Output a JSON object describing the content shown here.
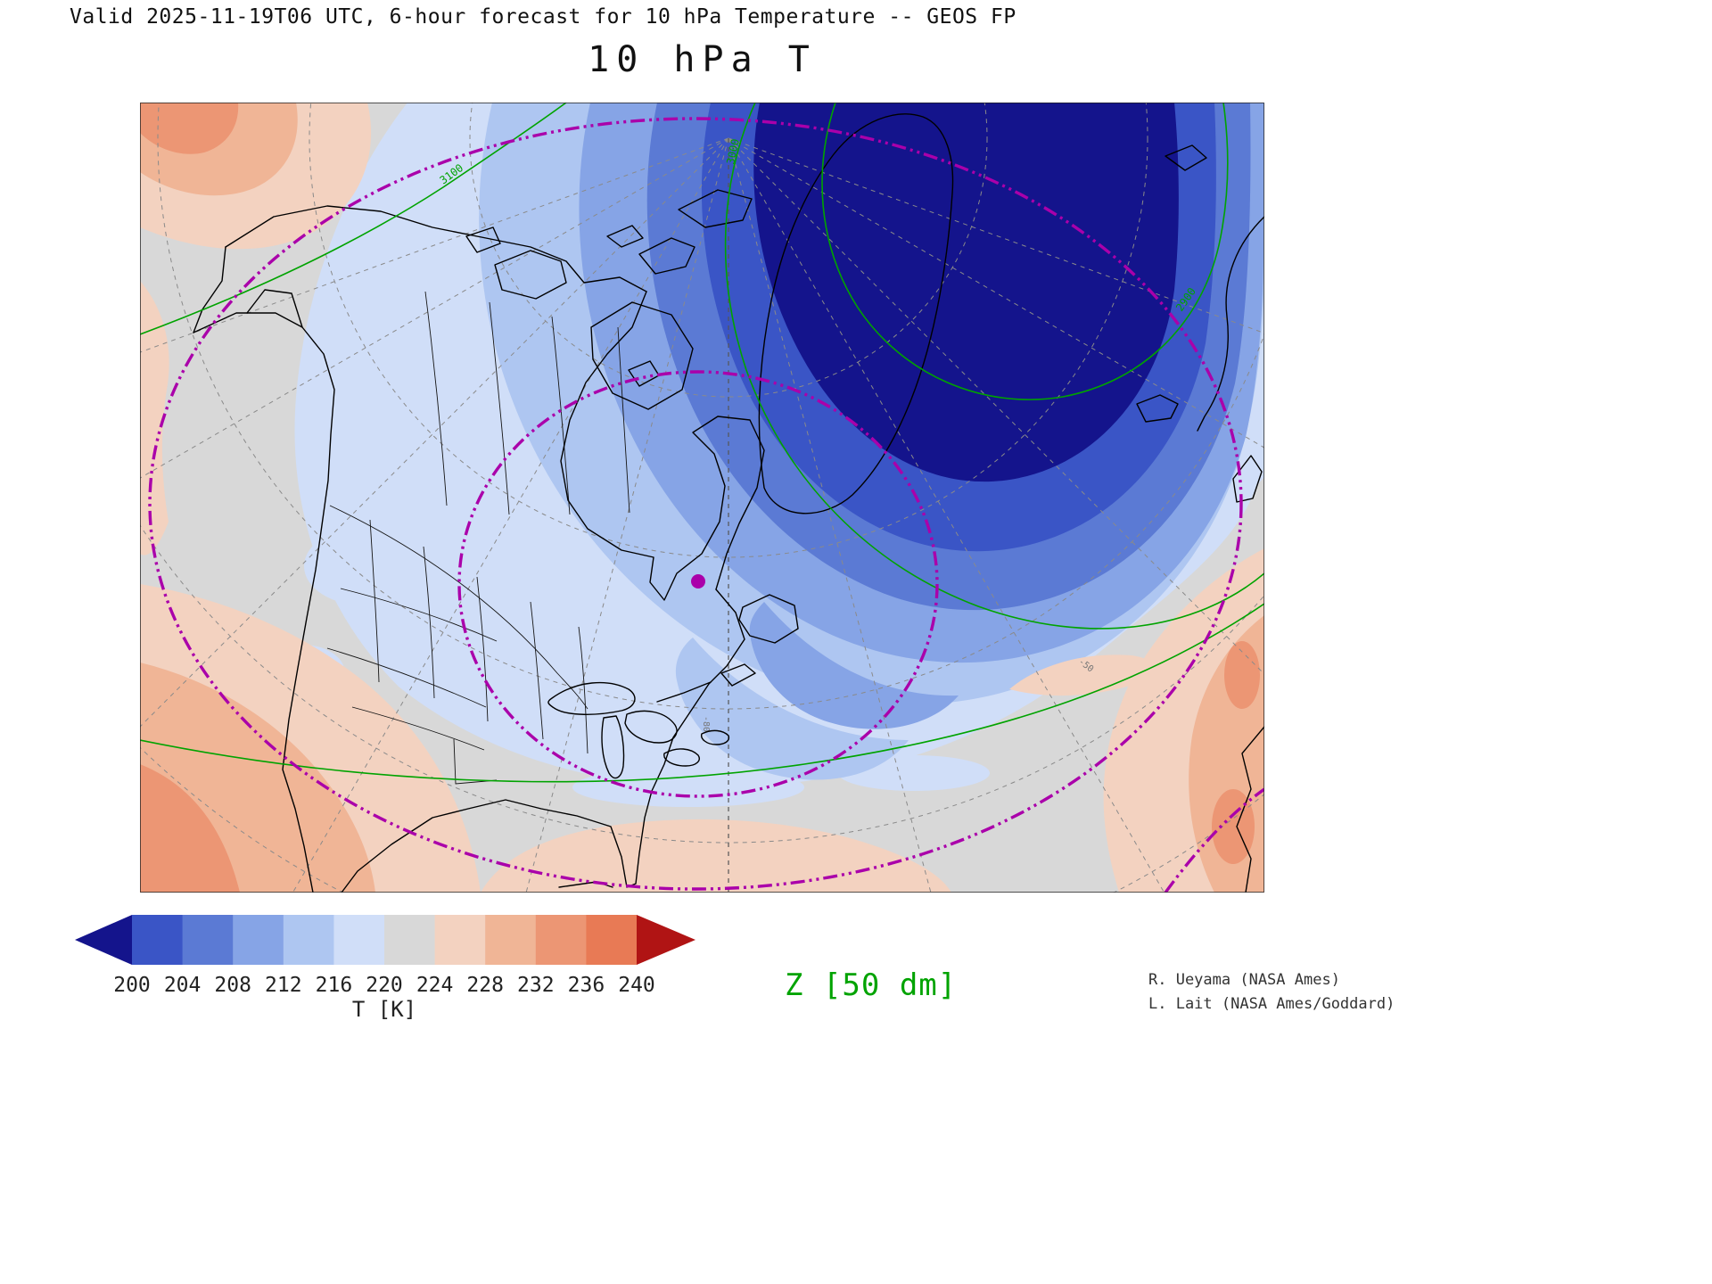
{
  "header": {
    "valid_line": "Valid 2025-11-19T06 UTC, 6-hour forecast for 10 hPa Temperature -- GEOS FP"
  },
  "title": "10 hPa T",
  "colorbar": {
    "axis_label": "T [K]"
  },
  "overlay": {
    "z_label": "Z [50 dm]",
    "z_color": "#00a300",
    "lat_circle_color": "#aa00aa",
    "contour_labels": [
      "3100",
      "3000",
      "2900"
    ],
    "graticule_labels": [
      "-80",
      "-50"
    ]
  },
  "credits": {
    "line1": "R. Ueyama (NASA Ames)",
    "line2": "L. Lait (NASA Ames/Goddard)"
  },
  "chart_data": {
    "type": "heatmap",
    "title": "10 hPa T",
    "field": "10 hPa Temperature",
    "units": "K",
    "valid": "2025-11-19T06 UTC",
    "forecast": "6-hour forecast",
    "model": "GEOS FP",
    "colorbar_label": "T [K]",
    "colorbar_levels": [
      200,
      204,
      208,
      212,
      216,
      220,
      224,
      228,
      232,
      236,
      240
    ],
    "colorbar_colors": [
      "#14148c",
      "#3a55c6",
      "#5b7ad4",
      "#86a4e6",
      "#aec6f1",
      "#d0def8",
      "#d8d8d8",
      "#f3d2c0",
      "#f0b596",
      "#ec9674",
      "#e87a55",
      "#b01414"
    ],
    "overlay_contours": {
      "variable": "Z",
      "units": "50 dm",
      "color": "#00a300",
      "labeled_values": [
        2900,
        3000,
        3100
      ]
    },
    "notable_features": {
      "cold_core": "Closed sub-200 K polar vortex centered over Greenland and the Arctic Ocean",
      "warm_edges": "224-236 K air along the southwestern, southern and eastern edges of the domain",
      "marker": "magenta dot and dash-dot latitude circles centered over eastern Canada"
    }
  }
}
